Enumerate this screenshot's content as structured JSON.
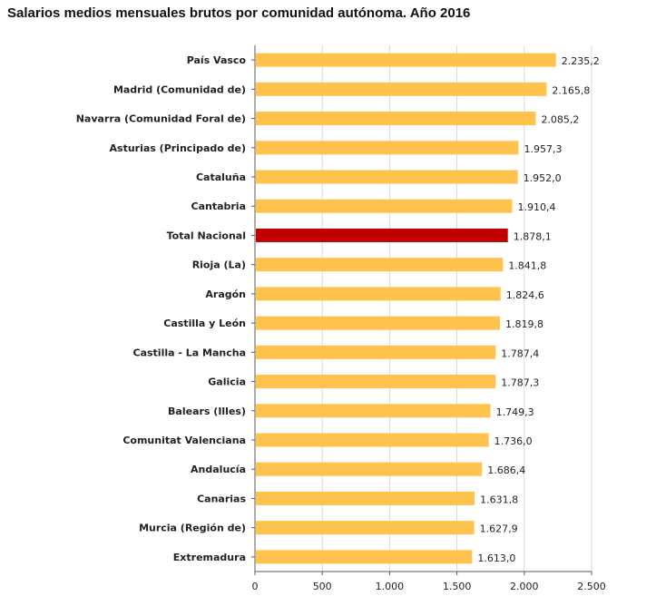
{
  "chart_data": {
    "type": "bar",
    "orientation": "horizontal",
    "title": "Salarios medios mensuales brutos por comunidad autónoma. Año 2016",
    "xlabel": "",
    "ylabel": "",
    "xlim": [
      0,
      2500
    ],
    "xticks": [
      0,
      500,
      1000,
      1500,
      2000,
      2500
    ],
    "xtick_labels": [
      "0",
      "500",
      "1.000",
      "1.500",
      "2.000",
      "2.500"
    ],
    "grid": true,
    "categories": [
      "País Vasco",
      "Madrid (Comunidad de)",
      "Navarra (Comunidad Foral de)",
      "Asturias (Principado de)",
      "Cataluña",
      "Cantabria",
      "Total Nacional",
      "Rioja (La)",
      "Aragón",
      "Castilla y León",
      "Castilla - La Mancha",
      "Galicia",
      "Balears (Illes)",
      "Comunitat Valenciana",
      "Andalucía",
      "Canarias",
      "Murcia (Región de)",
      "Extremadura"
    ],
    "values": [
      2235.2,
      2165.8,
      2085.2,
      1957.3,
      1952.0,
      1910.4,
      1878.1,
      1841.8,
      1824.6,
      1819.8,
      1787.4,
      1787.3,
      1749.3,
      1736.0,
      1686.4,
      1631.8,
      1627.9,
      1613.0
    ],
    "value_labels": [
      "2.235,2",
      "2.165,8",
      "2.085,2",
      "1.957,3",
      "1.952,0",
      "1.910,4",
      "1.878,1",
      "1.841,8",
      "1.824,6",
      "1.819,8",
      "1.787,4",
      "1.787,3",
      "1.749,3",
      "1.736,0",
      "1.686,4",
      "1.631,8",
      "1.627,9",
      "1.613,0"
    ],
    "highlight_category": "Total Nacional",
    "colors": {
      "bar": "#FFC34D",
      "highlight": "#C00000",
      "grid": "#D9D9D9",
      "axis": "#595959"
    }
  }
}
